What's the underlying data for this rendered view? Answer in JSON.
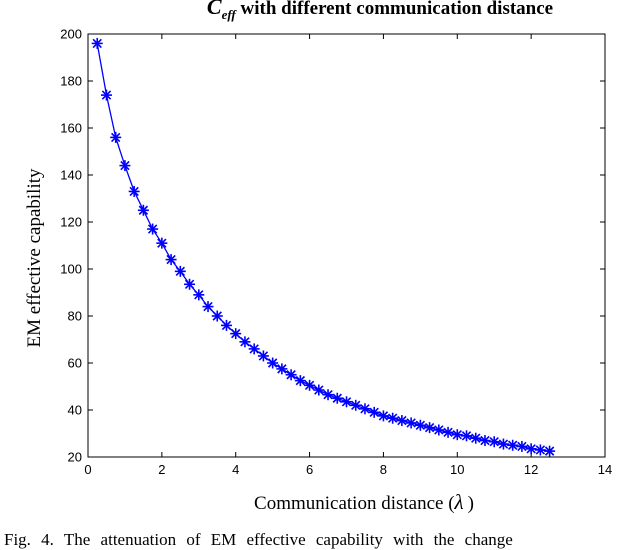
{
  "chart_data": {
    "type": "line",
    "title": {
      "symbol": "C",
      "subscript": "eff",
      "text": " with different communication distance"
    },
    "xlabel": "Communication distance (",
    "xlabel_symbol": "λ",
    "xlabel_close": ")",
    "ylabel": "EM effective capability",
    "xlim": [
      0,
      14
    ],
    "ylim": [
      20,
      200
    ],
    "xticks": [
      "0",
      "2",
      "4",
      "6",
      "8",
      "10",
      "12",
      "14"
    ],
    "yticks": [
      "20",
      "40",
      "60",
      "80",
      "100",
      "120",
      "140",
      "160",
      "180",
      "200"
    ],
    "grid": false,
    "series": [
      {
        "marker": "asterisk",
        "color": "#0000ff",
        "x": [
          0.25,
          0.5,
          0.75,
          1.0,
          1.25,
          1.5,
          1.75,
          2.0,
          2.25,
          2.5,
          2.75,
          3.0,
          3.25,
          3.5,
          3.75,
          4.0,
          4.25,
          4.5,
          4.75,
          5.0,
          5.25,
          5.5,
          5.75,
          6.0,
          6.25,
          6.5,
          6.75,
          7.0,
          7.25,
          7.5,
          7.75,
          8.0,
          8.25,
          8.5,
          8.75,
          9.0,
          9.25,
          9.5,
          9.75,
          10.0,
          10.25,
          10.5,
          10.75,
          11.0,
          11.25,
          11.5,
          11.75,
          12.0,
          12.25,
          12.5
        ],
        "y": [
          196,
          174,
          156,
          144,
          133,
          125,
          117,
          111,
          104,
          99,
          93.5,
          89,
          84,
          80,
          76,
          72.5,
          69,
          66,
          63,
          60,
          57.5,
          55,
          52.5,
          50.5,
          48.5,
          46.5,
          45,
          43.5,
          42,
          40.5,
          39,
          37.5,
          36.5,
          35.5,
          34.5,
          33.5,
          32.5,
          31.5,
          30.5,
          29.5,
          29,
          28,
          27,
          26.5,
          25.5,
          25,
          24.5,
          23.5,
          23,
          22.5
        ]
      }
    ]
  },
  "caption": "Fig. 4. The attenuation of EM effective capability with the change"
}
